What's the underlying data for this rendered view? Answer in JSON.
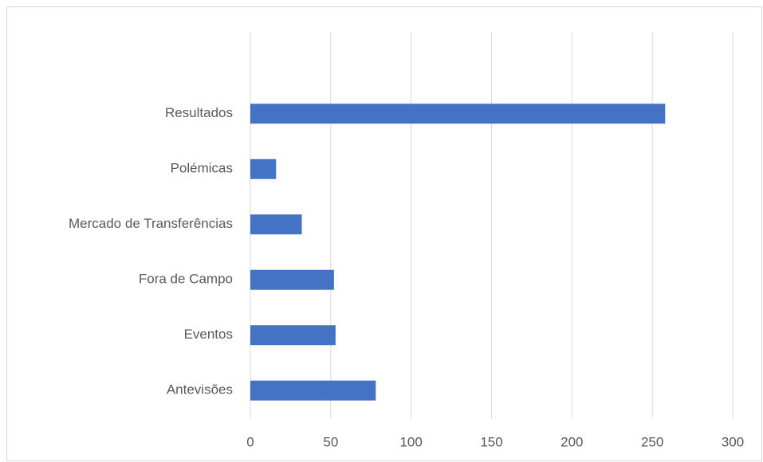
{
  "chart_data": {
    "type": "bar",
    "orientation": "horizontal",
    "categories": [
      "Resultados",
      "Polémicas",
      "Mercado de Transferências",
      "Fora de Campo",
      "Eventos",
      "Antevisões"
    ],
    "values": [
      258,
      16,
      32,
      52,
      53,
      78
    ],
    "color": "#4472c4",
    "xlim": [
      0,
      300
    ],
    "xticks": [
      0,
      50,
      100,
      150,
      200,
      250,
      300
    ],
    "grid": true
  }
}
